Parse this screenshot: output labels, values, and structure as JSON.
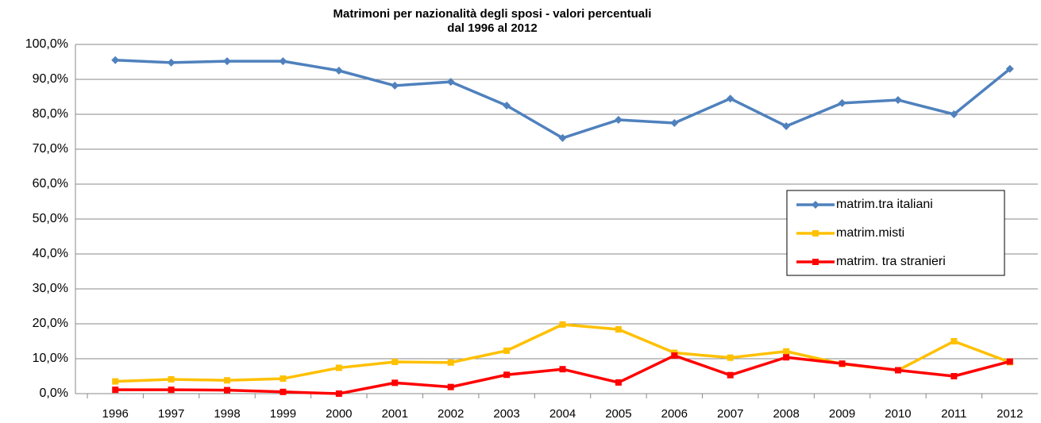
{
  "chart_data": {
    "type": "line",
    "title": "Matrimoni per nazionalità degli sposi - valori percentuali",
    "subtitle": "dal 1996 al 2012",
    "categories": [
      "1996",
      "1997",
      "1998",
      "1999",
      "2000",
      "2001",
      "2002",
      "2003",
      "2004",
      "2005",
      "2006",
      "2007",
      "2008",
      "2009",
      "2010",
      "2011",
      "2012"
    ],
    "series": [
      {
        "name": "matrim.tra italiani",
        "color": "#4f81bd",
        "marker": "diamond",
        "values": [
          95.5,
          94.8,
          95.2,
          95.2,
          92.5,
          88.2,
          89.3,
          82.5,
          73.2,
          78.4,
          77.5,
          84.5,
          76.6,
          83.2,
          84.1,
          80.0,
          93.0
        ]
      },
      {
        "name": "matrim.misti",
        "color": "#ffc000",
        "marker": "square",
        "values": [
          3.5,
          4.1,
          3.8,
          4.3,
          7.4,
          9.1,
          8.9,
          12.3,
          19.8,
          18.4,
          11.7,
          10.3,
          12.1,
          8.5,
          6.7,
          15.0,
          9.0
        ]
      },
      {
        "name": "matrim. tra stranieri",
        "color": "#ff0000",
        "marker": "square",
        "values": [
          1.1,
          1.1,
          1.0,
          0.5,
          0.0,
          3.1,
          1.9,
          5.4,
          7.0,
          3.2,
          10.9,
          5.3,
          10.4,
          8.6,
          6.7,
          5.0,
          9.2
        ]
      }
    ],
    "ylim": [
      0,
      100
    ],
    "yticks": [
      {
        "value": 0,
        "label": "0,0%"
      },
      {
        "value": 10,
        "label": "10,0%"
      },
      {
        "value": 20,
        "label": "20,0%"
      },
      {
        "value": 30,
        "label": "30,0%"
      },
      {
        "value": 40,
        "label": "40,0%"
      },
      {
        "value": 50,
        "label": "50,0%"
      },
      {
        "value": 60,
        "label": "60,0%"
      },
      {
        "value": 70,
        "label": "70,0%"
      },
      {
        "value": 80,
        "label": "80,0%"
      },
      {
        "value": 90,
        "label": "90,0%"
      },
      {
        "value": 100,
        "label": "100,0%"
      }
    ],
    "grid": true
  }
}
